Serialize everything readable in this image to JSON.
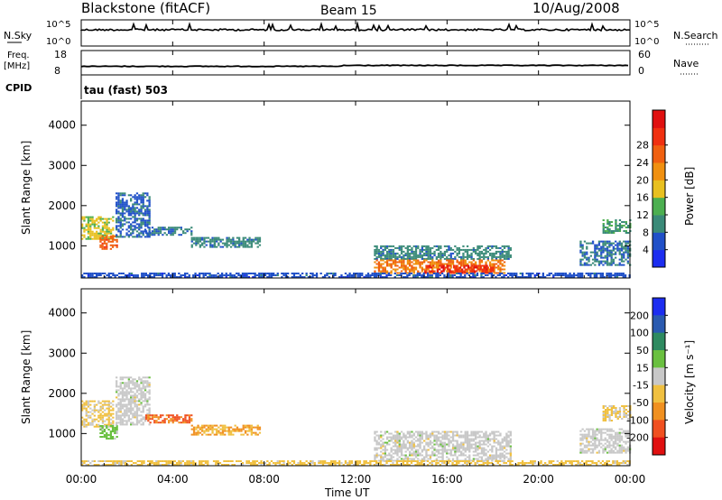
{
  "header": {
    "station": "Blackstone (fitACF)",
    "beam": "Beam 15",
    "date": "10/Aug/2008"
  },
  "noise_panel": {
    "left_label": "N.Sky",
    "left_ticks": [
      "10^5",
      "10^0"
    ],
    "right_ticks": [
      "10^5",
      "10^0"
    ],
    "right_label": "N.Search"
  },
  "freq_panel": {
    "left_label_1": "Freq.",
    "left_label_2": "[MHz]",
    "left_ticks": [
      "18",
      "8"
    ],
    "right_ticks": [
      "60",
      "0"
    ],
    "right_label": "Nave"
  },
  "cpid": {
    "label": "CPID",
    "value": "tau (fast) 503"
  },
  "x_axis": {
    "ticks": [
      "00:00",
      "04:00",
      "08:00",
      "12:00",
      "16:00",
      "20:00",
      "00:00"
    ],
    "label": "Time UT"
  },
  "power_panel": {
    "ylabel": "Slant Range [km]",
    "yticks": [
      "1000",
      "2000",
      "3000",
      "4000"
    ],
    "colorbar_label": "Power [dB]",
    "colorbar_ticks": [
      "4",
      "8",
      "12",
      "16",
      "20",
      "24",
      "28"
    ],
    "colors": [
      "#1c2df0",
      "#2050c8",
      "#3a8a78",
      "#4caf50",
      "#e8c020",
      "#f09010",
      "#f06010",
      "#f03010",
      "#e01010"
    ]
  },
  "velocity_panel": {
    "ylabel": "Slant Range [km]",
    "yticks": [
      "1000",
      "2000",
      "3000",
      "4000"
    ],
    "colorbar_label": "Velocity [m s⁻¹]",
    "colorbar_ticks": [
      "200",
      "100",
      "50",
      "15",
      "-15",
      "-50",
      "-100",
      "-200"
    ],
    "colors": [
      "#1c2df0",
      "#2a5ab0",
      "#2e8a60",
      "#6ac040",
      "#c8c8c8",
      "#f0c040",
      "#f09020",
      "#f05020",
      "#e01010"
    ]
  },
  "chart_data": [
    {
      "type": "heatmap",
      "title": "Blackstone (fitACF) Beam 15 10/Aug/2008",
      "xlabel": "Time UT",
      "ylabel": "Slant Range [km]",
      "xlim": [
        0,
        24
      ],
      "ylim": [
        200,
        4600
      ],
      "colorbar": {
        "label": "Power [dB]",
        "range": [
          0,
          30
        ]
      },
      "regions": [
        {
          "t0": 0.0,
          "t1": 1.4,
          "r0": 1150,
          "r1": 1700,
          "value": 14
        },
        {
          "t0": 0.8,
          "t1": 1.6,
          "r0": 900,
          "r1": 1250,
          "value": 22
        },
        {
          "t0": 1.5,
          "t1": 3.0,
          "r0": 1200,
          "r1": 2300,
          "value": 6
        },
        {
          "t0": 2.8,
          "t1": 4.8,
          "r0": 1250,
          "r1": 1450,
          "value": 7
        },
        {
          "t0": 4.8,
          "t1": 7.8,
          "r0": 950,
          "r1": 1200,
          "value": 8
        },
        {
          "t0": 12.8,
          "t1": 18.8,
          "r0": 650,
          "r1": 1000,
          "value": 8
        },
        {
          "t0": 12.8,
          "t1": 18.5,
          "r0": 300,
          "r1": 650,
          "value": 20
        },
        {
          "t0": 15.0,
          "t1": 18.0,
          "r0": 300,
          "r1": 500,
          "value": 26
        },
        {
          "t0": 0.0,
          "t1": 24.0,
          "r0": 200,
          "r1": 320,
          "value": 5
        },
        {
          "t0": 21.8,
          "t1": 24.0,
          "r0": 500,
          "r1": 1100,
          "value": 7
        },
        {
          "t0": 22.8,
          "t1": 24.0,
          "r0": 1300,
          "r1": 1650,
          "value": 10
        }
      ]
    },
    {
      "type": "heatmap",
      "title": "Blackstone (fitACF) Beam 15 10/Aug/2008",
      "xlabel": "Time UT",
      "ylabel": "Slant Range [km]",
      "xlim": [
        0,
        24
      ],
      "ylim": [
        200,
        4600
      ],
      "colorbar": {
        "label": "Velocity [m s⁻¹]",
        "range": [
          -200,
          200
        ]
      },
      "regions": [
        {
          "t0": 0.0,
          "t1": 1.4,
          "r0": 1150,
          "r1": 1800,
          "value": -30
        },
        {
          "t0": 0.8,
          "t1": 1.6,
          "r0": 850,
          "r1": 1200,
          "value": 40
        },
        {
          "t0": 1.5,
          "t1": 3.0,
          "r0": 1200,
          "r1": 2400,
          "value": 0
        },
        {
          "t0": 2.8,
          "t1": 4.8,
          "r0": 1250,
          "r1": 1450,
          "value": -120
        },
        {
          "t0": 4.8,
          "t1": 7.8,
          "r0": 950,
          "r1": 1200,
          "value": -70
        },
        {
          "t0": 12.8,
          "t1": 18.8,
          "r0": 300,
          "r1": 1050,
          "value": 0
        },
        {
          "t0": 0.0,
          "t1": 24.0,
          "r0": 200,
          "r1": 320,
          "value": -40
        },
        {
          "t0": 21.8,
          "t1": 24.0,
          "r0": 500,
          "r1": 1100,
          "value": 0
        },
        {
          "t0": 22.8,
          "t1": 24.0,
          "r0": 1300,
          "r1": 1700,
          "value": -30
        }
      ]
    }
  ]
}
